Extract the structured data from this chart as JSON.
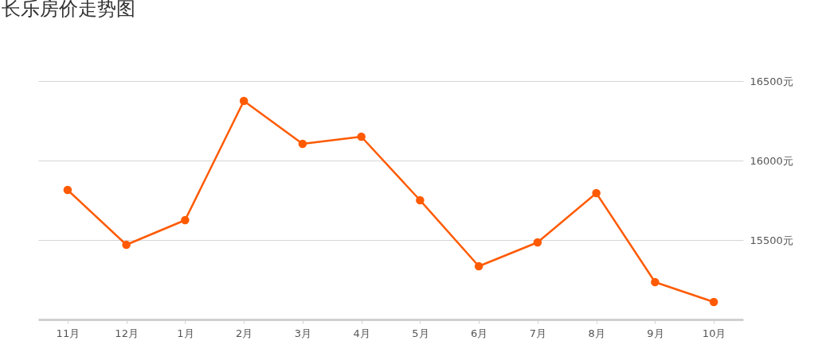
{
  "chart_data": {
    "type": "line",
    "title": "长乐房价走势图",
    "categories": [
      "11月",
      "12月",
      "1月",
      "2月",
      "3月",
      "4月",
      "5月",
      "6月",
      "7月",
      "8月",
      "9月",
      "10月"
    ],
    "series": [
      {
        "color": "#ff5a00",
        "values": [
          15815,
          15470,
          15625,
          16375,
          16105,
          16150,
          15750,
          15335,
          15485,
          15795,
          15235,
          15110
        ]
      }
    ],
    "ylim": [
      15000,
      16500
    ],
    "yticks": [
      {
        "value": 15500,
        "label": "15500元"
      },
      {
        "value": 16000,
        "label": "16000元"
      },
      {
        "value": 16500,
        "label": "16500元"
      }
    ],
    "grid": "y",
    "marker": "circle",
    "line_style": "solid",
    "legend": false
  }
}
